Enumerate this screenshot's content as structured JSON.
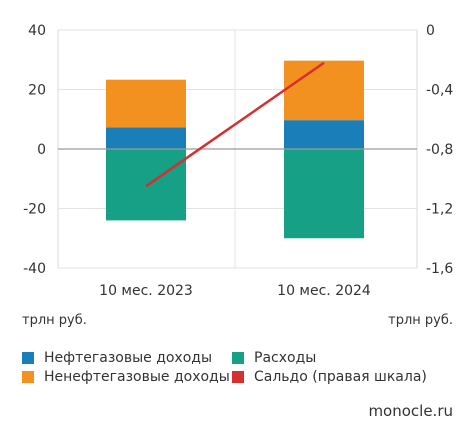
{
  "chart_data": {
    "type": "bar",
    "stacked": true,
    "categories": [
      "10 мес. 2023",
      "10 мес. 2024"
    ],
    "series": [
      {
        "name": "Нефтегазовые доходы",
        "values": [
          7.3,
          9.7
        ],
        "axis": "left",
        "color": "#1a7fb8"
      },
      {
        "name": "Ненефтегазовые доходы",
        "values": [
          16,
          20
        ],
        "axis": "left",
        "color": "#f39120"
      },
      {
        "name": "Расходы",
        "values": [
          -24,
          -30
        ],
        "axis": "left",
        "color": "#16a085"
      },
      {
        "name": "Сальдо (правая шкала)",
        "type": "line",
        "values": [
          -1.05,
          -0.22
        ],
        "axis": "right",
        "color": "#d62f2f"
      }
    ],
    "y_left": {
      "min": -40,
      "max": 40,
      "ticks": [
        "40",
        "20",
        "0",
        "-20",
        "-40"
      ],
      "unit": "трлн руб."
    },
    "y_right": {
      "min": -1.6,
      "max": 0,
      "ticks": [
        "0",
        "-0,4",
        "-0,8",
        "-1,2",
        "-1,6"
      ],
      "unit": "трлн руб."
    },
    "grid": true,
    "legend_position": "bottom"
  },
  "legend": [
    {
      "label": "Нефтегазовые доходы",
      "color": "#1a7fb8"
    },
    {
      "label": "Расходы",
      "color": "#16a085"
    },
    {
      "label": "Ненефтегазовые доходы",
      "color": "#f39120"
    },
    {
      "label": "Сальдо (правая шкала)",
      "color": "#d62f2f"
    }
  ],
  "source": "monocle.ru"
}
